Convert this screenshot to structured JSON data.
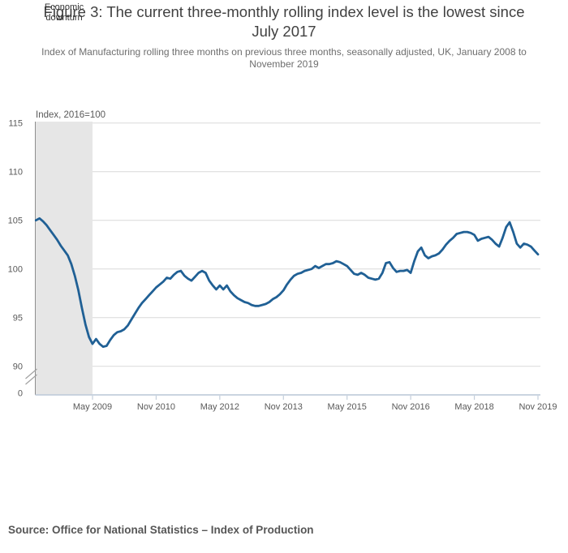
{
  "header": {
    "title_line1": "Figure 3: The current three-monthly rolling index level is the lowest since",
    "title_line2": "July 2017",
    "subtitle_line1": "Index of Manufacturing rolling three months on previous three months, seasonally adjusted, UK, January 2008 to",
    "subtitle_line2": "November 2019"
  },
  "annotation": {
    "downturn_label": "Economic\ndownturn"
  },
  "footer": {
    "source": "Source: Office for National Statistics – Index of Production"
  },
  "chart_data": {
    "type": "line",
    "title": "Figure 3: The current three-monthly rolling index level is the lowest since July 2017",
    "subtitle": "Index of Manufacturing rolling three months on previous three months, seasonally adjusted, UK, January 2008 to November 2019",
    "axis_label": "Index, 2016=100",
    "x_unit": "month",
    "x_range": [
      "Jan 2008",
      "Nov 2019"
    ],
    "x_ticks": [
      {
        "label": "May 2009",
        "month_index": 16
      },
      {
        "label": "Nov 2010",
        "month_index": 34
      },
      {
        "label": "May 2012",
        "month_index": 52
      },
      {
        "label": "Nov 2013",
        "month_index": 70
      },
      {
        "label": "May 2015",
        "month_index": 88
      },
      {
        "label": "Nov 2016",
        "month_index": 106
      },
      {
        "label": "May 2018",
        "month_index": 124
      },
      {
        "label": "Nov 2019",
        "month_index": 142
      }
    ],
    "y_ticks": [
      115,
      110,
      105,
      100,
      95,
      90
    ],
    "y_zero_label": "0",
    "ylim_shown": [
      90,
      115
    ],
    "axis_break": true,
    "grid": "horizontal",
    "legend": "none",
    "downturn_band": {
      "from_month_index": 0,
      "to_month_index": 16,
      "label": "Economic downturn"
    },
    "series": [
      {
        "name": "Index of Manufacturing, rolling three months on previous three months",
        "color": "#206095",
        "values": [
          105.0,
          105.2,
          104.9,
          104.5,
          104.0,
          103.5,
          103.0,
          102.4,
          101.9,
          101.4,
          100.5,
          99.3,
          97.8,
          96.0,
          94.3,
          93.0,
          92.3,
          92.8,
          92.3,
          92.0,
          92.1,
          92.7,
          93.2,
          93.5,
          93.6,
          93.8,
          94.2,
          94.8,
          95.4,
          96.0,
          96.5,
          96.9,
          97.3,
          97.7,
          98.1,
          98.4,
          98.7,
          99.1,
          99.0,
          99.4,
          99.7,
          99.8,
          99.3,
          99.0,
          98.8,
          99.2,
          99.6,
          99.8,
          99.6,
          98.8,
          98.3,
          97.9,
          98.3,
          97.9,
          98.3,
          97.7,
          97.3,
          97.0,
          96.8,
          96.6,
          96.5,
          96.3,
          96.2,
          96.2,
          96.3,
          96.4,
          96.6,
          96.9,
          97.1,
          97.4,
          97.8,
          98.4,
          98.9,
          99.3,
          99.5,
          99.6,
          99.8,
          99.9,
          100.0,
          100.3,
          100.1,
          100.3,
          100.5,
          100.5,
          100.6,
          100.8,
          100.7,
          100.5,
          100.3,
          99.9,
          99.5,
          99.4,
          99.6,
          99.4,
          99.1,
          99.0,
          98.9,
          99.0,
          99.6,
          100.6,
          100.7,
          100.1,
          99.7,
          99.8,
          99.8,
          99.9,
          99.6,
          100.8,
          101.8,
          102.2,
          101.4,
          101.1,
          101.3,
          101.4,
          101.6,
          102.0,
          102.5,
          102.9,
          103.2,
          103.6,
          103.7,
          103.8,
          103.8,
          103.7,
          103.5,
          102.9,
          103.1,
          103.2,
          103.3,
          103.0,
          102.6,
          102.3,
          103.2,
          104.3,
          104.8,
          103.8,
          102.6,
          102.2,
          102.6,
          102.5,
          102.3,
          101.9,
          101.5
        ]
      }
    ],
    "colors": {
      "line": "#206095",
      "band": "#e6e6e6",
      "gridline": "#d9d9d9",
      "y_axis_line": "#8e8e8e",
      "x_axis_line": "#c3cedb",
      "break_mark": "#a0a0a0",
      "tick_text": "#595959"
    }
  }
}
